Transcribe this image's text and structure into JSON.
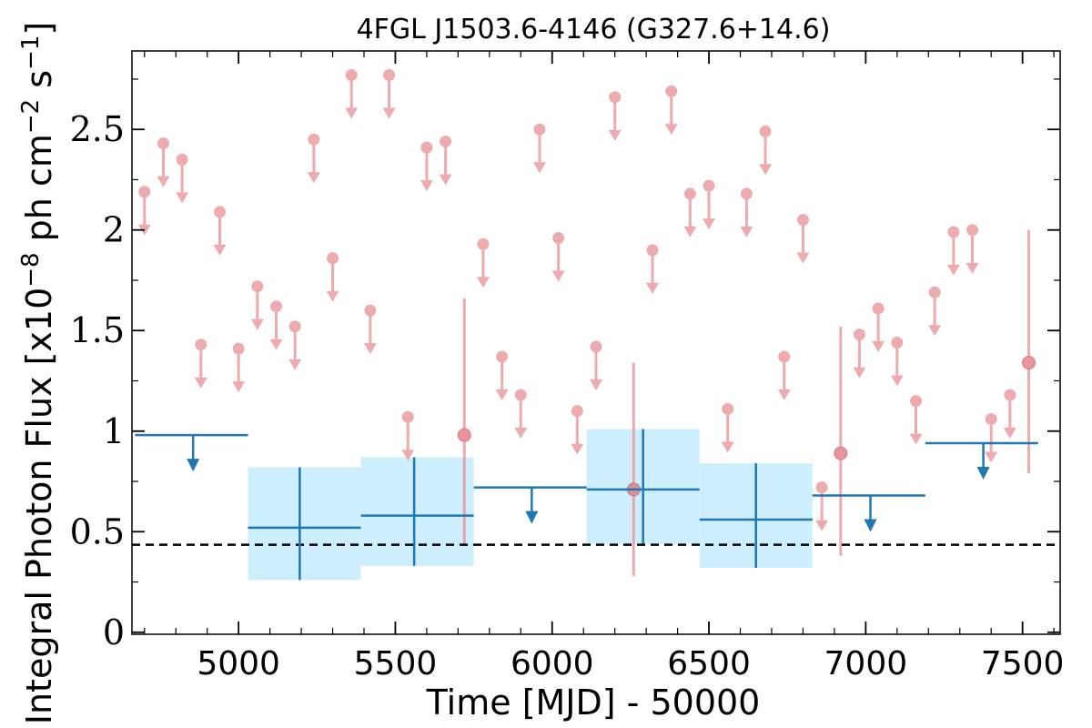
{
  "chart_data": {
    "type": "scatter",
    "title": "4FGL J1503.6-4146 (G327.6+14.6)",
    "xlabel": "Time [MJD] - 50000",
    "ylabel": "Integral Photon Flux [x10",
    "ylabel_exp": "−8",
    "ylabel_mid": " ph cm",
    "ylabel_exp2": "−2",
    "ylabel_end": " s",
    "ylabel_exp3": "−1",
    "ylabel_close": "]",
    "xlim": [
      4660,
      7620
    ],
    "ylim": [
      -0.01,
      2.89
    ],
    "x_ticks": [
      5000,
      5500,
      6000,
      6500,
      7000,
      7500
    ],
    "x_tick_labels": [
      "5000",
      "5500",
      "6000",
      "6500",
      "7000",
      "7500"
    ],
    "y_ticks": [
      0,
      0.5,
      1,
      1.5,
      2,
      2.5
    ],
    "y_tick_labels": [
      "0",
      "0.5",
      "1",
      "1.5",
      "2",
      "2.5"
    ],
    "reference_level": 0.435,
    "colors": {
      "fine_points": "#e88f94",
      "coarse_points": "#1f77b4",
      "band_fill": "#cdeefc",
      "reference_line": "#000000"
    },
    "fine_upper_limits": [
      {
        "x": 4700,
        "y": 2.19
      },
      {
        "x": 4760,
        "y": 2.43
      },
      {
        "x": 4820,
        "y": 2.35
      },
      {
        "x": 4880,
        "y": 1.43
      },
      {
        "x": 4940,
        "y": 2.09
      },
      {
        "x": 5000,
        "y": 1.41
      },
      {
        "x": 5060,
        "y": 1.72
      },
      {
        "x": 5120,
        "y": 1.62
      },
      {
        "x": 5180,
        "y": 1.52
      },
      {
        "x": 5240,
        "y": 2.45
      },
      {
        "x": 5300,
        "y": 1.86
      },
      {
        "x": 5360,
        "y": 2.77
      },
      {
        "x": 5420,
        "y": 1.6
      },
      {
        "x": 5480,
        "y": 2.77
      },
      {
        "x": 5540,
        "y": 1.07
      },
      {
        "x": 5600,
        "y": 2.41
      },
      {
        "x": 5660,
        "y": 2.44
      },
      {
        "x": 5780,
        "y": 1.93
      },
      {
        "x": 5840,
        "y": 1.37
      },
      {
        "x": 5900,
        "y": 1.18
      },
      {
        "x": 5960,
        "y": 2.5
      },
      {
        "x": 6020,
        "y": 1.96
      },
      {
        "x": 6080,
        "y": 1.1
      },
      {
        "x": 6140,
        "y": 1.42
      },
      {
        "x": 6200,
        "y": 2.66
      },
      {
        "x": 6320,
        "y": 1.9
      },
      {
        "x": 6380,
        "y": 2.69
      },
      {
        "x": 6440,
        "y": 2.18
      },
      {
        "x": 6500,
        "y": 2.22
      },
      {
        "x": 6560,
        "y": 1.11
      },
      {
        "x": 6620,
        "y": 2.18
      },
      {
        "x": 6680,
        "y": 2.49
      },
      {
        "x": 6740,
        "y": 1.37
      },
      {
        "x": 6800,
        "y": 2.05
      },
      {
        "x": 6860,
        "y": 0.72
      },
      {
        "x": 6980,
        "y": 1.48
      },
      {
        "x": 7040,
        "y": 1.61
      },
      {
        "x": 7100,
        "y": 1.44
      },
      {
        "x": 7160,
        "y": 1.15
      },
      {
        "x": 7220,
        "y": 1.69
      },
      {
        "x": 7280,
        "y": 1.99
      },
      {
        "x": 7340,
        "y": 2.0
      },
      {
        "x": 7400,
        "y": 1.06
      },
      {
        "x": 7460,
        "y": 1.18
      }
    ],
    "fine_detections": [
      {
        "x": 5720,
        "y": 0.98,
        "y_lo": 0.43,
        "y_hi": 1.66
      },
      {
        "x": 6260,
        "y": 0.71,
        "y_lo": 0.28,
        "y_hi": 1.34
      },
      {
        "x": 6920,
        "y": 0.89,
        "y_lo": 0.38,
        "y_hi": 1.52
      },
      {
        "x": 7520,
        "y": 1.34,
        "y_lo": 0.79,
        "y_hi": 2.0
      }
    ],
    "coarse_upper_limits": [
      {
        "x": 4855,
        "x_lo": 4670,
        "x_hi": 5030,
        "y": 0.98
      },
      {
        "x": 5935,
        "x_lo": 5750,
        "x_hi": 6110,
        "y": 0.72
      },
      {
        "x": 7015,
        "x_lo": 6830,
        "x_hi": 7190,
        "y": 0.68
      },
      {
        "x": 7375,
        "x_lo": 7190,
        "x_hi": 7550,
        "y": 0.94
      }
    ],
    "coarse_detections": [
      {
        "x": 5195,
        "x_lo": 5030,
        "x_hi": 5390,
        "y": 0.52,
        "y_lo": 0.26,
        "y_hi": 0.82
      },
      {
        "x": 5560,
        "x_lo": 5390,
        "x_hi": 5750,
        "y": 0.58,
        "y_lo": 0.33,
        "y_hi": 0.87
      },
      {
        "x": 6290,
        "x_lo": 6110,
        "x_hi": 6470,
        "y": 0.71,
        "y_lo": 0.44,
        "y_hi": 1.01
      },
      {
        "x": 6650,
        "x_lo": 6470,
        "x_hi": 6830,
        "y": 0.56,
        "y_lo": 0.32,
        "y_hi": 0.84
      }
    ]
  }
}
